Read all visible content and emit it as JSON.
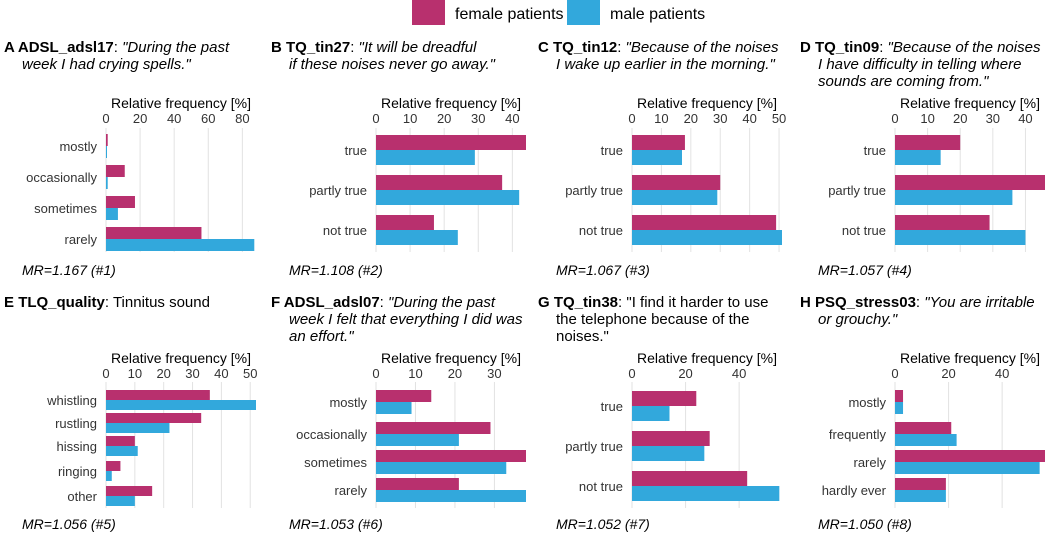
{
  "legend": {
    "female_label": "female patients",
    "male_label": "male patients",
    "female_color": "#b8306e",
    "male_color": "#32a8dc"
  },
  "axis_title": "Relative frequency [%]",
  "chart_data": [
    {
      "type": "bar",
      "letter": "A",
      "var": "ADSL_adsl17",
      "quote": [
        "\"During the past",
        "week I had crying spells.\""
      ],
      "italic": true,
      "ticks": [
        0,
        20,
        40,
        60,
        80
      ],
      "xlim": [
        0,
        88
      ],
      "categories": [
        "mostly",
        "occasionally",
        "sometimes",
        "rarely"
      ],
      "series": [
        {
          "name": "female patients",
          "values": [
            1,
            11,
            17,
            56
          ]
        },
        {
          "name": "male patients",
          "values": [
            0.5,
            1,
            7,
            87
          ]
        }
      ],
      "footer": "MR=1.167 (#1)"
    },
    {
      "type": "bar",
      "letter": "B",
      "var": "TQ_tin27",
      "quote": [
        "\"It will be dreadful",
        "if these noises never go away.\""
      ],
      "italic": true,
      "ticks": [
        0,
        10,
        20,
        30,
        40
      ],
      "xlim": [
        0,
        44
      ],
      "categories": [
        "true",
        "partly true",
        "not true"
      ],
      "series": [
        {
          "name": "female patients",
          "values": [
            44,
            37,
            17
          ]
        },
        {
          "name": "male patients",
          "values": [
            29,
            42,
            24
          ]
        }
      ],
      "footer": "MR=1.108 (#2)"
    },
    {
      "type": "bar",
      "letter": "C",
      "var": "TQ_tin12",
      "quote": [
        "\"Because of the noises",
        "I wake up earlier in the morning.\""
      ],
      "italic": true,
      "ticks": [
        0,
        10,
        20,
        30,
        40,
        50
      ],
      "xlim": [
        0,
        51
      ],
      "categories": [
        "true",
        "partly true",
        "not true"
      ],
      "series": [
        {
          "name": "female patients",
          "values": [
            18,
            30,
            49
          ]
        },
        {
          "name": "male patients",
          "values": [
            17,
            29,
            51
          ]
        }
      ],
      "footer": "MR=1.067 (#3)"
    },
    {
      "type": "bar",
      "letter": "D",
      "var": "TQ_tin09",
      "quote": [
        "\"Because of the noises",
        "I have difficulty in telling where",
        "sounds are coming from.\""
      ],
      "italic": true,
      "ticks": [
        0,
        10,
        20,
        30,
        40
      ],
      "xlim": [
        0,
        46
      ],
      "categories": [
        "true",
        "partly true",
        "not true"
      ],
      "series": [
        {
          "name": "female patients",
          "values": [
            20,
            46,
            29
          ]
        },
        {
          "name": "male patients",
          "values": [
            14,
            36,
            40
          ]
        }
      ],
      "footer": "MR=1.057 (#4)"
    },
    {
      "type": "bar",
      "letter": "E",
      "var": "TLQ_quality",
      "quote": [
        "Tinnitus sound"
      ],
      "italic": false,
      "ticks": [
        0,
        10,
        20,
        30,
        40,
        50
      ],
      "xlim": [
        0,
        52
      ],
      "categories": [
        "whistling",
        "rustling",
        "hissing",
        "ringing",
        "other"
      ],
      "series": [
        {
          "name": "female patients",
          "values": [
            36,
            33,
            10,
            5,
            16
          ]
        },
        {
          "name": "male patients",
          "values": [
            52,
            22,
            11,
            2,
            10
          ]
        }
      ],
      "footer": "MR=1.056 (#5)"
    },
    {
      "type": "bar",
      "letter": "F",
      "var": "ADSL_adsl07",
      "quote": [
        "\"During the past",
        "week I felt that everything I did was",
        "an effort.\""
      ],
      "italic": true,
      "ticks": [
        0,
        10,
        20,
        30
      ],
      "xlim": [
        0,
        38
      ],
      "categories": [
        "mostly",
        "occasionally",
        "sometimes",
        "rarely"
      ],
      "series": [
        {
          "name": "female patients",
          "values": [
            14,
            29,
            38,
            21
          ]
        },
        {
          "name": "male patients",
          "values": [
            9,
            21,
            33,
            38
          ]
        }
      ],
      "footer": "MR=1.053 (#6)"
    },
    {
      "type": "bar",
      "letter": "G",
      "var": "TQ_tin38",
      "quote": [
        "\"I find it harder to use",
        "the telephone because of the",
        "noises.\""
      ],
      "italic": false,
      "ticks": [
        0,
        20,
        40
      ],
      "xlim": [
        0,
        56
      ],
      "categories": [
        "true",
        "partly true",
        "not true"
      ],
      "series": [
        {
          "name": "female patients",
          "values": [
            24,
            29,
            43
          ]
        },
        {
          "name": "male patients",
          "values": [
            14,
            27,
            55
          ]
        }
      ],
      "footer": "MR=1.052 (#7)"
    },
    {
      "type": "bar",
      "letter": "H",
      "var": "PSQ_stress03",
      "quote": [
        "\"You are irritable",
        "or grouchy.\""
      ],
      "italic": true,
      "ticks": [
        0,
        20,
        40
      ],
      "xlim": [
        0,
        56
      ],
      "categories": [
        "mostly",
        "frequently",
        "rarely",
        "hardly ever"
      ],
      "series": [
        {
          "name": "female patients",
          "values": [
            3,
            21,
            56,
            19
          ]
        },
        {
          "name": "male patients",
          "values": [
            3,
            23,
            54,
            19
          ]
        }
      ],
      "footer": "MR=1.050 (#8)"
    }
  ]
}
